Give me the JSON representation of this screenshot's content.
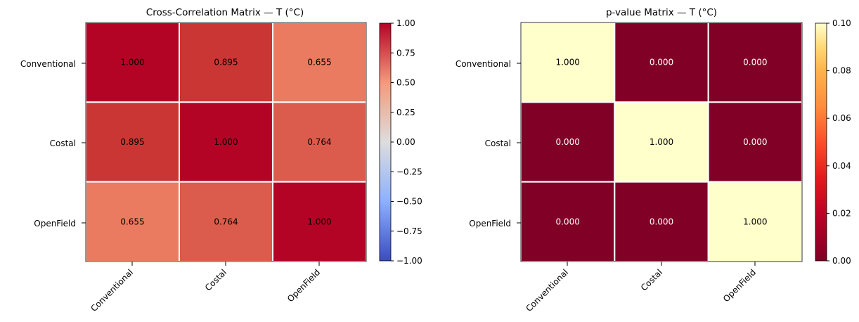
{
  "chart_data": [
    {
      "type": "heatmap",
      "title": "Cross-Correlation Matrix — T (°C)",
      "row_labels": [
        "Conventional",
        "Costal",
        "OpenField"
      ],
      "col_labels": [
        "Conventional",
        "Costal",
        "OpenField"
      ],
      "values": [
        [
          1.0,
          0.895,
          0.655
        ],
        [
          0.895,
          1.0,
          0.764
        ],
        [
          0.655,
          0.764,
          1.0
        ]
      ],
      "cell_text": [
        [
          "1.000",
          "0.895",
          "0.655"
        ],
        [
          "0.895",
          "1.000",
          "0.764"
        ],
        [
          "0.655",
          "0.764",
          "1.000"
        ]
      ],
      "colormap": "coolwarm",
      "colorbar": {
        "range": [
          -1.0,
          1.0
        ],
        "ticks": [
          1.0,
          0.75,
          0.5,
          0.25,
          0.0,
          -0.25,
          -0.5,
          -0.75,
          -1.0
        ],
        "tick_labels": [
          "1.00",
          "0.75",
          "0.50",
          "0.25",
          "0.00",
          "−0.25",
          "−0.50",
          "−0.75",
          "−1.00"
        ]
      },
      "cell_text_color": "#000000",
      "grid_line_color": "#ffffff"
    },
    {
      "type": "heatmap",
      "title": "p-value Matrix — T (°C)",
      "row_labels": [
        "Conventional",
        "Costal",
        "OpenField"
      ],
      "col_labels": [
        "Conventional",
        "Costal",
        "OpenField"
      ],
      "values": [
        [
          1.0,
          0.0,
          0.0
        ],
        [
          0.0,
          1.0,
          0.0
        ],
        [
          0.0,
          0.0,
          1.0
        ]
      ],
      "cell_text": [
        [
          "1.000",
          "0.000",
          "0.000"
        ],
        [
          "0.000",
          "1.000",
          "0.000"
        ],
        [
          "0.000",
          "0.000",
          "1.000"
        ]
      ],
      "colormap": "YlOrRd_r",
      "colorbar": {
        "range": [
          0.0,
          0.1
        ],
        "ticks": [
          0.1,
          0.08,
          0.06,
          0.04,
          0.02,
          0.0
        ],
        "tick_labels": [
          "0.10",
          "0.08",
          "0.06",
          "0.04",
          "0.02",
          "0.00"
        ]
      },
      "grid_line_color": "#ffffff"
    }
  ]
}
